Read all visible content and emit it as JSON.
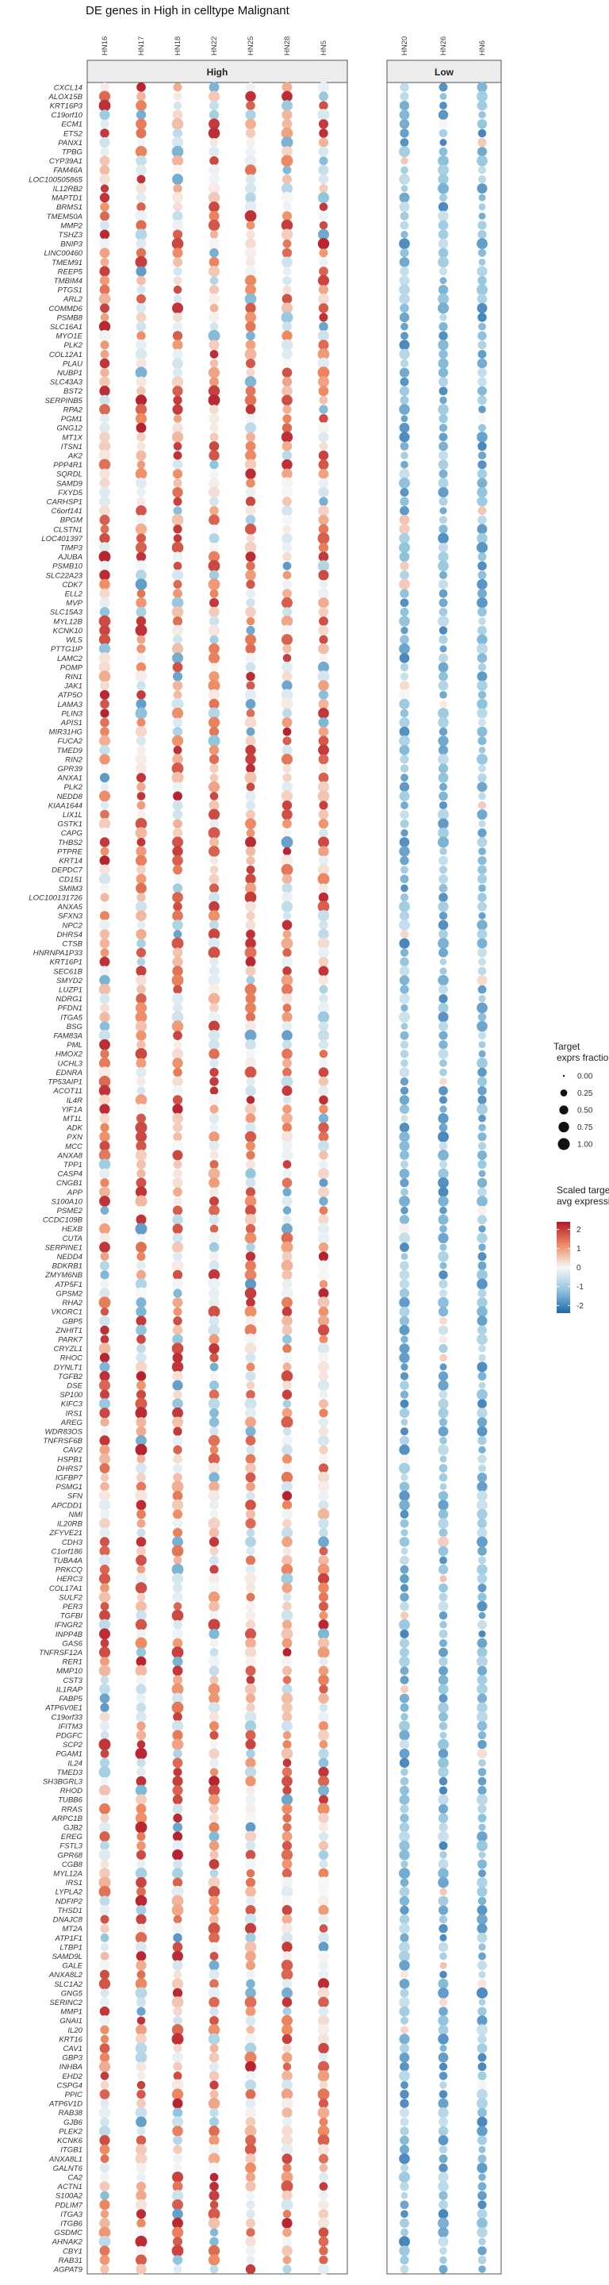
{
  "chart_data": {
    "type": "dotplot",
    "title": "DE genes in High in celltype Malignant",
    "panels": [
      {
        "name": "High",
        "samples": [
          "HN16",
          "HN17",
          "HN18",
          "HN22",
          "HN25",
          "HN28",
          "HN5"
        ]
      },
      {
        "name": "Low",
        "samples": [
          "HN20",
          "HN26",
          "HN6"
        ]
      }
    ],
    "genes": [
      "CXCL14",
      "ALOX15B",
      "KRT16P3",
      "C19orf10",
      "ECM1",
      "ETS2",
      "PANX1",
      "TPBG",
      "CYP39A1",
      "FAM46A",
      "LOC100505865",
      "IL12RB2",
      "MAPTD1",
      "BRMS1",
      "TMEM50A",
      "MMP2",
      "TSHZ3",
      "BNIP3",
      "LINC00460",
      "TMEM91",
      "REEP5",
      "TMBIM4",
      "PTGS1",
      "ARL2",
      "COMMD6",
      "PSMB8",
      "SLC16A1",
      "MYO1E",
      "PLK2",
      "COL12A1",
      "PLAU",
      "NUBP1",
      "SLC43A3",
      "BST2",
      "SERPINB5",
      "RPA2",
      "PGM1",
      "GNG12",
      "MT1X",
      "ITSN1",
      "AK2",
      "PPP4R1",
      "SQRDL",
      "SAMD9",
      "FXYD5",
      "CARHSP1",
      "C6orf141",
      "BPGM",
      "CLSTN1",
      "LOC401397",
      "TIMP3",
      "AJUBA",
      "PSMB10",
      "SLC22A23",
      "CDK7",
      "ELL2",
      "MVP",
      "SLC15A3",
      "MYL12B",
      "KCNK10",
      "WLS",
      "PTTG1IP",
      "LAMC2",
      "POMP",
      "RIN1",
      "JAK1",
      "ATP5O",
      "LAMA3",
      "PLIN3",
      "APIS1",
      "MIR31HG",
      "FUCA2",
      "TMED9",
      "RIN2",
      "GPR39",
      "ANXA1",
      "PLK2",
      "NEDD8",
      "KIAA1644",
      "LIX1L",
      "GSTK1",
      "CAPG",
      "THBS2",
      "PTPRE",
      "KRT14",
      "DEPDC7",
      "CD151",
      "SMIM3",
      "LOC100131726",
      "ANXA5",
      "SFXN3",
      "NPC2",
      "DHRS4",
      "CTSB",
      "HNRNPA1P33",
      "KRT16P1",
      "SEC61B",
      "SMYD2",
      "LUZP1",
      "NDRG1",
      "PFDN1",
      "ITGA5",
      "BSG",
      "FAM83A",
      "PML",
      "HMOX2",
      "UCHL3",
      "EDNRA",
      "TP53AIP1",
      "ACOT11",
      "IL4R",
      "YIF1A",
      "MT1L",
      "ADK",
      "PXN",
      "MCC",
      "ANXA8",
      "TPP1",
      "CASP4",
      "CNGB1",
      "APP",
      "S100A10",
      "PSME2",
      "CCDC109B",
      "HEXB",
      "CUTA",
      "SERPINE1",
      "NEDD4",
      "BDKRB1",
      "ZMYM6NB",
      "ATP5F1",
      "GPSM2",
      "RHA2",
      "VKORC1",
      "GBP5",
      "ZNHIT1",
      "PARK7",
      "CRYZL1",
      "RHOC",
      "DYNLT1",
      "TGFB2",
      "DSE",
      "SP100",
      "KIFC3",
      "IRS1",
      "AREG",
      "WDR83OS",
      "TNFRSF6B",
      "CAV2",
      "HSPB1",
      "DHRS7",
      "IGFBP7",
      "PSMG1",
      "SFN",
      "APCDD1",
      "NMI",
      "IL20RB",
      "ZFYVE21",
      "CDH3",
      "C1orf186",
      "TUBA4A",
      "PRKCQ",
      "HERC3",
      "COL17A1",
      "SULF2",
      "PER3",
      "TGFBI",
      "IFNGR2",
      "INPP4B",
      "GAS6",
      "TNFRSF12A",
      "RER1",
      "MMP10",
      "CST3",
      "IL1RAP",
      "FABP5",
      "ATP6V0E1",
      "C19orf33",
      "IFITM3",
      "PDGFC",
      "SCP2",
      "PGAM1",
      "IL24",
      "TMED3",
      "SH3BGRL3",
      "RHOD",
      "TUBB6",
      "RRAS",
      "ARPC1B",
      "GJB2",
      "EREG",
      "FSTL3",
      "GPR68",
      "CGB8",
      "MYL12A",
      "IRS1",
      "LYPLA2",
      "NDFIP2",
      "THSD1",
      "DNAJC8",
      "MT2A",
      "ATP1F1",
      "LTBP1",
      "SAMD9L",
      "GALE",
      "ANXA8L2",
      "SLC1A2",
      "GNG5",
      "SERINC2",
      "MMP1",
      "GNAI1",
      "IL20",
      "KRT16",
      "CAV1",
      "GBP3",
      "INHBA",
      "EHD2",
      "CSPG4",
      "PPIC",
      "ATP6V1D",
      "RAB38",
      "GJB6",
      "PLEK2",
      "KCNK6",
      "ITGB1",
      "ANXA8L1",
      "GALNT6",
      "CA2",
      "ACTN1",
      "S100A2",
      "PDLIM7",
      "ITGA3",
      "ITGB6",
      "GSDMC",
      "AHNAK2",
      "CBY1",
      "RAB31",
      "AGPAT9"
    ],
    "size_legend": {
      "title": "Target\nexprs fraction",
      "values": [
        0.0,
        0.25,
        0.5,
        0.75,
        1.0
      ]
    },
    "color_legend": {
      "title": "Scaled target\navg expression",
      "ticks": [
        2,
        1,
        0,
        -1,
        -2
      ],
      "high_color": "#b2182b",
      "mid_color": "#f7f7f7",
      "low_color": "#2166ac"
    }
  }
}
